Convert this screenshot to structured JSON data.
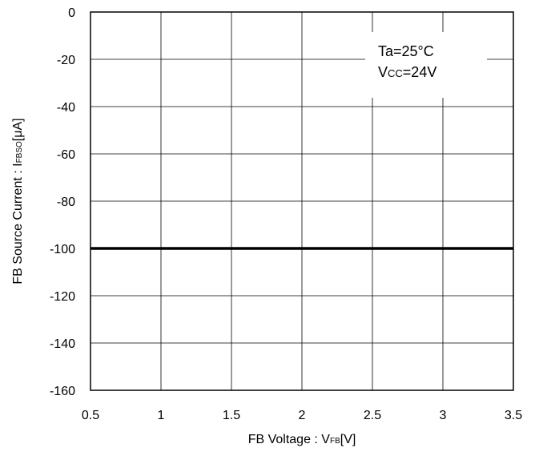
{
  "chart_data": {
    "type": "line",
    "xlabel": "FB Voltage : V",
    "xlabel_sub": "FB",
    "xlabel_unit": "[V]",
    "ylabel": "FB Source Current : I",
    "ylabel_sub": "FBSO",
    "ylabel_unit": "[μA]",
    "xlim": [
      0.5,
      3.5
    ],
    "ylim": [
      -160,
      0
    ],
    "xticks": [
      0.5,
      1,
      1.5,
      2,
      2.5,
      3,
      3.5
    ],
    "xtick_labels": [
      "0.5",
      "1",
      "1.5",
      "2",
      "2.5",
      "3",
      "3.5"
    ],
    "yticks": [
      0,
      -20,
      -40,
      -60,
      -80,
      -100,
      -120,
      -140,
      -160
    ],
    "ytick_labels": [
      "0",
      "-20",
      "-40",
      "-60",
      "-80",
      "-100",
      "-120",
      "-140",
      "-160"
    ],
    "grid": true,
    "series": [
      {
        "x": [
          0.5,
          3.5
        ],
        "y": [
          -100,
          -100
        ]
      }
    ],
    "annotation": {
      "line1": "Ta=25°C",
      "line2_main": "V",
      "line2_sub": "CC",
      "line2_rest": "=24V"
    }
  }
}
